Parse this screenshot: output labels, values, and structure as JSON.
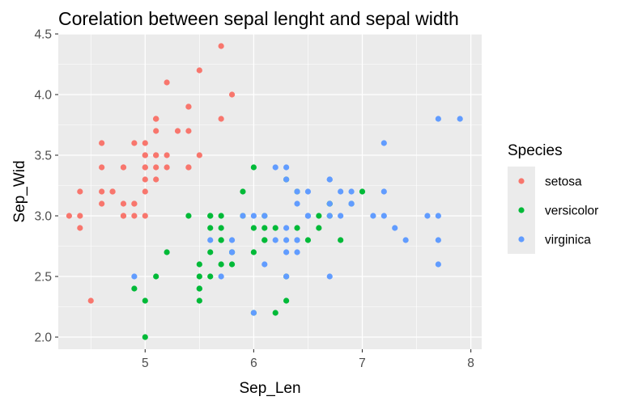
{
  "chart_data": {
    "type": "scatter",
    "title": "Corelation between sepal lenght and sepal width",
    "xlabel": "Sep_Len",
    "ylabel": "Sep_Wid",
    "xlim": [
      4.2,
      8.1
    ],
    "ylim": [
      1.9,
      4.5
    ],
    "xticks": [
      5,
      6,
      7,
      8
    ],
    "yticks": [
      2.0,
      2.5,
      3.0,
      3.5,
      4.0,
      4.5
    ],
    "grid": true,
    "legend": {
      "title": "Species",
      "placement": "right"
    },
    "series": [
      {
        "name": "setosa",
        "color": "#F8766D",
        "points": [
          [
            5.1,
            3.5
          ],
          [
            4.9,
            3.0
          ],
          [
            4.7,
            3.2
          ],
          [
            4.6,
            3.1
          ],
          [
            5.0,
            3.6
          ],
          [
            5.4,
            3.9
          ],
          [
            4.6,
            3.4
          ],
          [
            5.0,
            3.4
          ],
          [
            4.4,
            2.9
          ],
          [
            4.9,
            3.1
          ],
          [
            5.4,
            3.7
          ],
          [
            4.8,
            3.4
          ],
          [
            4.8,
            3.0
          ],
          [
            4.3,
            3.0
          ],
          [
            5.8,
            4.0
          ],
          [
            5.7,
            4.4
          ],
          [
            5.4,
            3.9
          ],
          [
            5.1,
            3.5
          ],
          [
            5.7,
            3.8
          ],
          [
            5.1,
            3.8
          ],
          [
            5.4,
            3.4
          ],
          [
            5.1,
            3.7
          ],
          [
            4.6,
            3.6
          ],
          [
            5.1,
            3.3
          ],
          [
            4.8,
            3.4
          ],
          [
            5.0,
            3.0
          ],
          [
            5.0,
            3.4
          ],
          [
            5.2,
            3.5
          ],
          [
            5.2,
            3.4
          ],
          [
            4.7,
            3.2
          ],
          [
            4.8,
            3.1
          ],
          [
            5.4,
            3.4
          ],
          [
            5.2,
            4.1
          ],
          [
            5.5,
            4.2
          ],
          [
            4.9,
            3.1
          ],
          [
            5.0,
            3.2
          ],
          [
            5.5,
            3.5
          ],
          [
            4.9,
            3.6
          ],
          [
            4.4,
            3.0
          ],
          [
            5.1,
            3.4
          ],
          [
            5.0,
            3.5
          ],
          [
            4.5,
            2.3
          ],
          [
            4.4,
            3.2
          ],
          [
            5.0,
            3.5
          ],
          [
            5.1,
            3.8
          ],
          [
            4.8,
            3.0
          ],
          [
            5.1,
            3.8
          ],
          [
            4.6,
            3.2
          ],
          [
            5.3,
            3.7
          ],
          [
            5.0,
            3.3
          ]
        ]
      },
      {
        "name": "versicolor",
        "color": "#00BA38",
        "points": [
          [
            7.0,
            3.2
          ],
          [
            6.4,
            3.2
          ],
          [
            6.9,
            3.1
          ],
          [
            5.5,
            2.3
          ],
          [
            6.5,
            2.8
          ],
          [
            5.7,
            2.8
          ],
          [
            6.3,
            3.3
          ],
          [
            4.9,
            2.4
          ],
          [
            6.6,
            2.9
          ],
          [
            5.2,
            2.7
          ],
          [
            5.0,
            2.0
          ],
          [
            5.9,
            3.0
          ],
          [
            6.0,
            2.2
          ],
          [
            6.1,
            2.9
          ],
          [
            5.6,
            2.9
          ],
          [
            6.7,
            3.1
          ],
          [
            5.6,
            3.0
          ],
          [
            5.8,
            2.7
          ],
          [
            6.2,
            2.2
          ],
          [
            5.6,
            2.5
          ],
          [
            5.9,
            3.2
          ],
          [
            6.1,
            2.8
          ],
          [
            6.3,
            2.5
          ],
          [
            6.1,
            2.8
          ],
          [
            6.4,
            2.9
          ],
          [
            6.6,
            3.0
          ],
          [
            6.8,
            2.8
          ],
          [
            6.7,
            3.0
          ],
          [
            6.0,
            2.9
          ],
          [
            5.7,
            2.6
          ],
          [
            5.5,
            2.4
          ],
          [
            5.5,
            2.4
          ],
          [
            5.8,
            2.7
          ],
          [
            6.0,
            2.7
          ],
          [
            5.4,
            3.0
          ],
          [
            6.0,
            3.4
          ],
          [
            6.7,
            3.1
          ],
          [
            6.3,
            2.3
          ],
          [
            5.6,
            3.0
          ],
          [
            5.5,
            2.5
          ],
          [
            5.5,
            2.6
          ],
          [
            6.1,
            3.0
          ],
          [
            5.8,
            2.6
          ],
          [
            5.0,
            2.3
          ],
          [
            5.6,
            2.7
          ],
          [
            5.7,
            3.0
          ],
          [
            5.7,
            2.9
          ],
          [
            6.2,
            2.9
          ],
          [
            5.1,
            2.5
          ],
          [
            5.7,
            2.8
          ]
        ]
      },
      {
        "name": "virginica",
        "color": "#619CFF",
        "points": [
          [
            6.3,
            3.3
          ],
          [
            5.8,
            2.7
          ],
          [
            7.1,
            3.0
          ],
          [
            6.3,
            2.9
          ],
          [
            6.5,
            3.0
          ],
          [
            7.6,
            3.0
          ],
          [
            4.9,
            2.5
          ],
          [
            7.3,
            2.9
          ],
          [
            6.7,
            2.5
          ],
          [
            7.2,
            3.6
          ],
          [
            6.5,
            3.2
          ],
          [
            6.4,
            2.7
          ],
          [
            6.8,
            3.0
          ],
          [
            5.7,
            2.5
          ],
          [
            5.8,
            2.8
          ],
          [
            6.4,
            3.2
          ],
          [
            6.5,
            3.0
          ],
          [
            7.7,
            3.8
          ],
          [
            7.7,
            2.6
          ],
          [
            6.0,
            2.2
          ],
          [
            6.9,
            3.2
          ],
          [
            5.6,
            2.8
          ],
          [
            7.7,
            2.8
          ],
          [
            6.3,
            2.7
          ],
          [
            6.7,
            3.3
          ],
          [
            7.2,
            3.2
          ],
          [
            6.2,
            2.8
          ],
          [
            6.1,
            3.0
          ],
          [
            6.4,
            2.8
          ],
          [
            7.2,
            3.0
          ],
          [
            7.4,
            2.8
          ],
          [
            7.9,
            3.8
          ],
          [
            6.4,
            2.8
          ],
          [
            6.3,
            2.8
          ],
          [
            6.1,
            2.6
          ],
          [
            7.7,
            3.0
          ],
          [
            6.3,
            3.4
          ],
          [
            6.4,
            3.1
          ],
          [
            6.0,
            3.0
          ],
          [
            6.9,
            3.1
          ],
          [
            6.7,
            3.1
          ],
          [
            6.9,
            3.1
          ],
          [
            5.8,
            2.7
          ],
          [
            6.8,
            3.2
          ],
          [
            6.7,
            3.3
          ],
          [
            6.7,
            3.0
          ],
          [
            6.3,
            2.5
          ],
          [
            6.5,
            3.0
          ],
          [
            6.2,
            3.4
          ],
          [
            5.9,
            3.0
          ]
        ]
      }
    ]
  }
}
